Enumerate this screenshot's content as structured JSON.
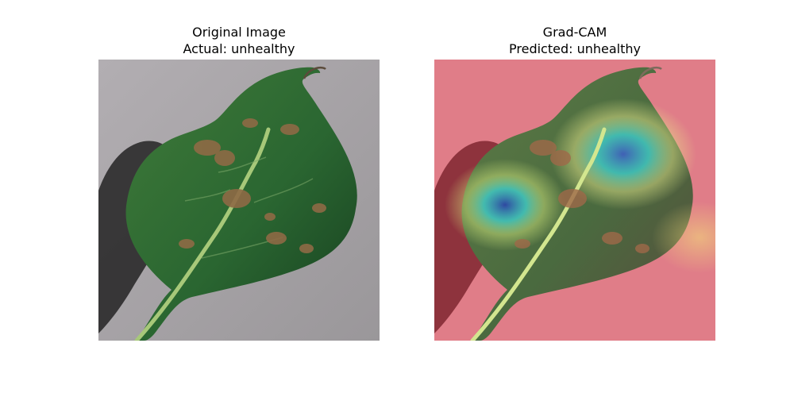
{
  "figure": {
    "left_panel": {
      "title_line1": "Original Image",
      "title_line2": "Actual: unhealthy"
    },
    "right_panel": {
      "title_line1": "Grad-CAM",
      "title_line2": "Predicted: unhealthy"
    }
  },
  "colors": {
    "background": "#a6a2a6",
    "leaf": "#2f6a34",
    "leaf_dark": "#173f1f",
    "midrib": "#a7c879",
    "lesion": "#8e6a45",
    "heatmap_base": "#e36d7a",
    "heatmap_cool": "#3dd3d3",
    "heatmap_peak": "#2d46a6",
    "heatmap_warm": "#f3e17a"
  }
}
